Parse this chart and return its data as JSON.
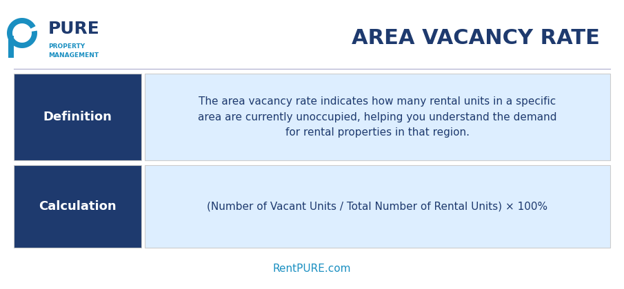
{
  "title": "AREA VACANCY RATE",
  "title_color": "#1e3a6e",
  "title_fontsize": 22,
  "background_color": "#ffffff",
  "dark_blue": "#1e3a6e",
  "light_blue_bg": "#ddeeff",
  "light_blue_border": "#aaccee",
  "label_text_color": "#ffffff",
  "content_text_color": "#1e3a6e",
  "rows": [
    {
      "label": "Definition",
      "content": "The area vacancy rate indicates how many rental units in a specific\narea are currently unoccupied, helping you understand the demand\nfor rental properties in that region."
    },
    {
      "label": "Calculation",
      "content": "(Number of Vacant Units / Total Number of Rental Units) × 100%"
    }
  ],
  "footer_text": "RentPURE.com",
  "footer_color": "#1a8fc1",
  "pure_text": "PURE",
  "pure_color": "#1e3a6e",
  "property_text": "PROPERTY\nMANAGEMENT",
  "property_color": "#1a8fc1",
  "logo_p_color1": "#1a8fc1",
  "logo_p_color2": "#0d5a8a"
}
